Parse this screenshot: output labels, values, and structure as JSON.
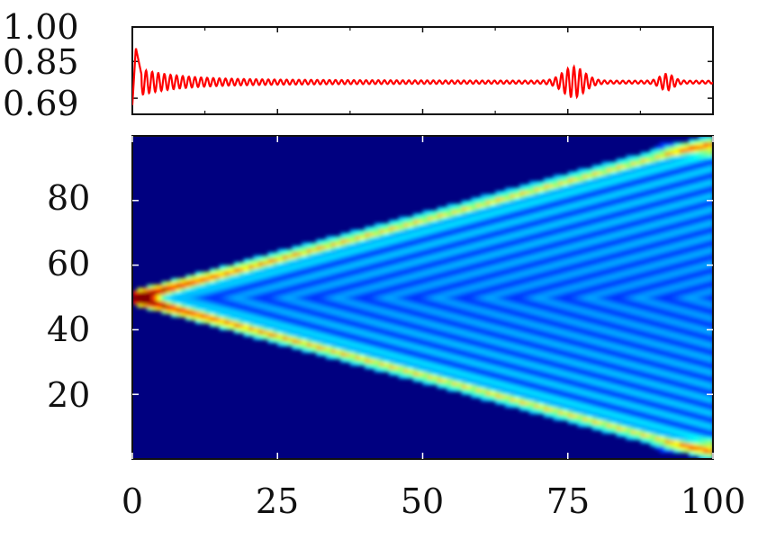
{
  "chart_data": [
    {
      "type": "line",
      "title": "",
      "xlabel": "",
      "ylabel": "",
      "xlim": [
        0,
        100
      ],
      "ylim": [
        0.62,
        1.0
      ],
      "yticks": [
        {
          "value": 1.0,
          "label": "1.00"
        },
        {
          "value": 0.85,
          "label": "0.85"
        },
        {
          "value": 0.69,
          "label": "0.69"
        }
      ],
      "xticks": [
        0,
        25,
        50,
        75,
        100
      ],
      "grid": false,
      "line_color": "#ff0000",
      "baseline": 0.76,
      "features": [
        {
          "x": 1.0,
          "peak": 0.91
        },
        {
          "x": 76.0,
          "peak": 0.82
        },
        {
          "x": 92.0,
          "peak": 0.79
        }
      ]
    },
    {
      "type": "heatmap",
      "title": "",
      "xlabel": "",
      "ylabel": "",
      "xlim": [
        0,
        100
      ],
      "ylim": [
        0,
        100
      ],
      "xticks": [
        0,
        25,
        50,
        75,
        100
      ],
      "yticks": [
        20,
        40,
        60,
        80
      ],
      "source_y": 50,
      "light_cone_slope": 0.485,
      "colormap": "jet",
      "colors": {
        "low": "#000080",
        "mid": "#00c8ff",
        "high": "#ffff00",
        "peak": "#ff0000"
      }
    }
  ],
  "xtick_labels": [
    "0",
    "25",
    "50",
    "75",
    "100"
  ],
  "heatmap_ytick_labels": [
    "20",
    "40",
    "60",
    "80"
  ],
  "line_ytick_labels": [
    "1.00",
    "0.85",
    "0.69"
  ]
}
